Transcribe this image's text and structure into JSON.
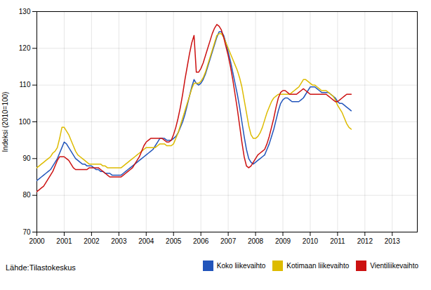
{
  "chart_data": {
    "type": "line",
    "ylabel": "Indeksi (2010=100)",
    "source": "Lähde:Tilastokeskus",
    "xlim": [
      2000.0,
      2013.917
    ],
    "xticks": [
      2000,
      2001,
      2002,
      2003,
      2004,
      2005,
      2006,
      2007,
      2008,
      2009,
      2010,
      2011,
      2012,
      2013
    ],
    "ylim": [
      70,
      130
    ],
    "yticks": [
      70,
      80,
      90,
      100,
      110,
      120,
      130
    ],
    "grid": true,
    "legend": "bottom",
    "x": [
      2000,
      2000.0833,
      2000.1667,
      2000.25,
      2000.3333,
      2000.4167,
      2000.5,
      2000.5833,
      2000.6667,
      2000.75,
      2000.8333,
      2000.9167,
      2001,
      2001.0833,
      2001.1667,
      2001.25,
      2001.3333,
      2001.4167,
      2001.5,
      2001.5833,
      2001.6667,
      2001.75,
      2001.8333,
      2001.9167,
      2002,
      2002.0833,
      2002.1667,
      2002.25,
      2002.3333,
      2002.4167,
      2002.5,
      2002.5833,
      2002.6667,
      2002.75,
      2002.8333,
      2002.9167,
      2003,
      2003.0833,
      2003.1667,
      2003.25,
      2003.3333,
      2003.4167,
      2003.5,
      2003.5833,
      2003.6667,
      2003.75,
      2003.8333,
      2003.9167,
      2004,
      2004.0833,
      2004.1667,
      2004.25,
      2004.3333,
      2004.4167,
      2004.5,
      2004.5833,
      2004.6667,
      2004.75,
      2004.8333,
      2004.9167,
      2005,
      2005.0833,
      2005.1667,
      2005.25,
      2005.3333,
      2005.4167,
      2005.5,
      2005.5833,
      2005.6667,
      2005.75,
      2005.8333,
      2005.9167,
      2006,
      2006.0833,
      2006.1667,
      2006.25,
      2006.3333,
      2006.4167,
      2006.5,
      2006.5833,
      2006.6667,
      2006.75,
      2006.8333,
      2006.9167,
      2007,
      2007.0833,
      2007.1667,
      2007.25,
      2007.3333,
      2007.4167,
      2007.5,
      2007.5833,
      2007.6667,
      2007.75,
      2007.8333,
      2007.9167,
      2008,
      2008.0833,
      2008.1667,
      2008.25,
      2008.3333,
      2008.4167,
      2008.5,
      2008.5833,
      2008.6667,
      2008.75,
      2008.8333,
      2008.9167,
      2009,
      2009.0833,
      2009.1667,
      2009.25,
      2009.3333,
      2009.4167,
      2009.5,
      2009.5833,
      2009.6667,
      2009.75,
      2009.8333,
      2009.9167,
      2010,
      2010.0833,
      2010.1667,
      2010.25,
      2010.3333,
      2010.4167,
      2010.5,
      2010.5833,
      2010.6667,
      2010.75,
      2010.8333,
      2010.9167,
      2011,
      2011.0833,
      2011.1667,
      2011.25,
      2011.3333,
      2011.4167,
      2011.5
    ],
    "series": [
      {
        "name": "Koko liikevaihto",
        "color": "#2255bb",
        "values": [
          84.0,
          84.5,
          85.0,
          85.5,
          86.0,
          86.5,
          87.0,
          88.0,
          89.0,
          90.0,
          91.5,
          93.0,
          94.5,
          94.0,
          93.0,
          92.0,
          91.0,
          90.0,
          89.5,
          89.0,
          88.5,
          88.5,
          88.0,
          88.0,
          88.0,
          87.5,
          87.0,
          87.0,
          86.5,
          86.5,
          86.0,
          86.0,
          86.0,
          85.5,
          85.5,
          85.5,
          85.5,
          85.5,
          86.0,
          86.5,
          87.0,
          87.5,
          88.0,
          88.5,
          89.0,
          89.5,
          90.0,
          90.5,
          91.0,
          91.5,
          92.0,
          92.5,
          93.5,
          94.5,
          95.5,
          95.5,
          95.5,
          95.0,
          95.0,
          95.0,
          95.5,
          96.0,
          97.0,
          98.5,
          100.0,
          102.0,
          104.5,
          107.0,
          109.5,
          111.5,
          110.5,
          110.0,
          110.5,
          111.5,
          113.0,
          115.0,
          117.0,
          119.0,
          121.0,
          123.0,
          124.5,
          124.5,
          123.5,
          121.5,
          119.0,
          116.5,
          113.5,
          110.5,
          107.5,
          104.0,
          100.0,
          96.0,
          92.5,
          90.0,
          89.0,
          88.5,
          89.0,
          89.5,
          90.0,
          90.5,
          91.0,
          92.5,
          94.0,
          96.0,
          98.0,
          100.5,
          103.0,
          105.0,
          106.0,
          106.5,
          106.5,
          106.0,
          105.5,
          105.5,
          105.5,
          105.5,
          106.0,
          106.5,
          107.5,
          108.5,
          109.5,
          109.5,
          109.5,
          109.0,
          108.5,
          108.0,
          108.0,
          108.0,
          108.0,
          107.5,
          107.0,
          106.5,
          105.5,
          105.0,
          105.0,
          104.5,
          104.0,
          103.5,
          103.0
        ]
      },
      {
        "name": "Kotimaan liikevaihto",
        "color": "#ddbb00",
        "values": [
          87.5,
          88.0,
          88.5,
          89.0,
          89.5,
          90.0,
          90.5,
          91.5,
          92.0,
          93.0,
          95.5,
          98.5,
          98.5,
          97.5,
          96.5,
          95.0,
          93.5,
          92.0,
          91.0,
          90.5,
          90.0,
          89.5,
          89.0,
          88.5,
          88.5,
          88.5,
          88.5,
          88.5,
          88.5,
          88.0,
          88.0,
          87.5,
          87.5,
          87.5,
          87.5,
          87.5,
          87.5,
          87.5,
          88.0,
          88.5,
          89.0,
          89.5,
          90.0,
          90.5,
          91.0,
          91.5,
          92.0,
          92.5,
          93.0,
          93.0,
          93.0,
          93.0,
          93.0,
          93.5,
          94.0,
          94.0,
          94.0,
          93.5,
          93.5,
          93.5,
          94.0,
          95.5,
          97.0,
          99.0,
          101.0,
          103.0,
          105.0,
          107.0,
          109.0,
          110.5,
          110.5,
          110.5,
          111.0,
          112.0,
          113.5,
          115.5,
          117.5,
          119.5,
          121.5,
          123.5,
          124.0,
          124.0,
          123.0,
          121.5,
          120.0,
          118.5,
          117.0,
          115.5,
          114.0,
          112.0,
          109.5,
          106.0,
          102.5,
          99.0,
          96.5,
          95.5,
          95.5,
          96.0,
          97.0,
          98.5,
          100.5,
          102.5,
          104.0,
          105.5,
          106.5,
          107.0,
          107.5,
          107.5,
          107.5,
          107.5,
          107.5,
          107.5,
          108.0,
          108.5,
          109.0,
          109.5,
          110.5,
          111.5,
          111.5,
          111.0,
          110.5,
          110.0,
          110.0,
          109.5,
          109.0,
          108.5,
          108.5,
          108.5,
          108.0,
          107.5,
          107.0,
          106.0,
          104.5,
          103.5,
          102.5,
          101.0,
          99.5,
          98.5,
          98.0
        ]
      },
      {
        "name": "Vientiliikevaihto",
        "color": "#cc1111",
        "values": [
          81.0,
          81.5,
          82.0,
          82.5,
          83.5,
          84.5,
          85.5,
          86.5,
          88.0,
          89.5,
          90.5,
          90.5,
          90.5,
          90.0,
          89.5,
          88.5,
          87.5,
          87.0,
          87.0,
          87.0,
          87.0,
          87.0,
          87.0,
          87.5,
          87.5,
          87.5,
          87.5,
          87.5,
          87.0,
          86.5,
          86.0,
          85.5,
          85.0,
          85.0,
          85.0,
          85.0,
          85.0,
          85.0,
          85.5,
          86.0,
          86.5,
          87.0,
          87.5,
          88.5,
          89.5,
          90.5,
          92.0,
          93.5,
          94.5,
          95.0,
          95.5,
          95.5,
          95.5,
          95.5,
          95.5,
          95.5,
          95.0,
          94.5,
          94.5,
          95.0,
          96.5,
          98.5,
          101.0,
          104.0,
          107.5,
          111.5,
          115.0,
          118.5,
          121.5,
          123.5,
          113.5,
          113.5,
          114.5,
          116.0,
          118.0,
          120.0,
          122.0,
          124.0,
          125.5,
          126.5,
          126.0,
          125.0,
          123.0,
          120.5,
          118.0,
          115.0,
          111.5,
          107.5,
          103.5,
          99.0,
          94.5,
          90.5,
          88.0,
          87.5,
          88.0,
          89.0,
          90.0,
          91.0,
          91.5,
          92.0,
          92.5,
          94.0,
          96.0,
          98.5,
          101.0,
          104.0,
          106.5,
          108.0,
          108.5,
          108.5,
          108.0,
          107.5,
          107.5,
          107.5,
          107.5,
          108.0,
          108.5,
          109.0,
          108.5,
          108.0,
          107.5,
          107.5,
          107.5,
          107.5,
          107.5,
          107.5,
          107.5,
          107.5,
          107.0,
          106.5,
          106.0,
          105.5,
          105.5,
          106.0,
          106.5,
          107.0,
          107.5,
          107.5,
          107.5
        ]
      }
    ]
  }
}
